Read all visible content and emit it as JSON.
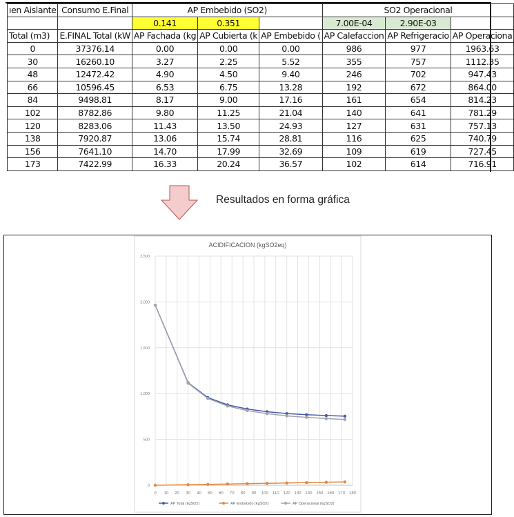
{
  "table": {
    "group_headers": [
      "ıen Aislante",
      "Consumo E.Final",
      "AP Embebido (SO2)",
      "SO2 Operacional"
    ],
    "factors": {
      "fachada": "0.141",
      "cubierta": "0.351",
      "calefaccion": "7.00E-04",
      "refrigeracion": "2.90E-03"
    },
    "columns": [
      "Total (m3)",
      "E.FINAL Total (kW",
      "AP Fachada (kg",
      "AP Cubierta (k",
      "AP Embebido (",
      "AP Calefaccion",
      "AP Refrigeracio",
      "AP Operaciona"
    ],
    "rows": [
      [
        "0",
        "37376.14",
        "0.00",
        "0.00",
        "0.00",
        "986",
        "977",
        "1963.63"
      ],
      [
        "30",
        "16260.10",
        "3.27",
        "2.25",
        "5.52",
        "355",
        "757",
        "1112.35"
      ],
      [
        "48",
        "12472.42",
        "4.90",
        "4.50",
        "9.40",
        "246",
        "702",
        "947.43"
      ],
      [
        "66",
        "10596.45",
        "6.53",
        "6.75",
        "13.28",
        "192",
        "672",
        "864.00"
      ],
      [
        "84",
        "9498.81",
        "8.17",
        "9.00",
        "17.16",
        "161",
        "654",
        "814.23"
      ],
      [
        "102",
        "8782.86",
        "9.80",
        "11.25",
        "21.04",
        "140",
        "641",
        "781.29"
      ],
      [
        "120",
        "8283.06",
        "11.43",
        "13.50",
        "24.93",
        "127",
        "631",
        "757.13"
      ],
      [
        "138",
        "7920.87",
        "13.06",
        "15.74",
        "28.81",
        "116",
        "625",
        "740.79"
      ],
      [
        "156",
        "7641.10",
        "14.70",
        "17.99",
        "32.69",
        "109",
        "619",
        "727.45"
      ],
      [
        "173",
        "7422.99",
        "16.33",
        "20.24",
        "36.57",
        "102",
        "614",
        "716.91"
      ]
    ]
  },
  "caption": "Resultados en forma gráfica",
  "chart_data": {
    "type": "line",
    "title": "ACIDIFICACION (kgSO2eq)",
    "x": [
      0,
      30,
      48,
      66,
      84,
      102,
      120,
      138,
      156,
      173
    ],
    "xlim": [
      0,
      180
    ],
    "x_ticks": [
      "0",
      "10",
      "20",
      "30",
      "40",
      "50",
      "60",
      "70",
      "80",
      "90",
      "100",
      "110",
      "120",
      "130",
      "140",
      "150",
      "160",
      "170",
      "180"
    ],
    "ylim": [
      0,
      2500
    ],
    "y_ticks": [
      "0",
      "500",
      "1,000",
      "1,500",
      "2,000",
      "2,500"
    ],
    "grid": true,
    "legend": "bottom",
    "series": [
      {
        "name": "AP Total (kgSO2)",
        "color": "#4a5aa8",
        "values": [
          1963.63,
          1117.87,
          956.83,
          877.28,
          831.39,
          802.33,
          782.06,
          769.6,
          760.14,
          753.48
        ]
      },
      {
        "name": "AP Embebido (kgSO2)",
        "color": "#e8873a",
        "values": [
          0,
          5.52,
          9.4,
          13.28,
          17.16,
          21.04,
          24.93,
          28.81,
          32.69,
          36.57
        ]
      },
      {
        "name": "AP Operacional (kgSO2)",
        "color": "#a0a4ad",
        "values": [
          1963.63,
          1112.35,
          947.43,
          864.0,
          814.23,
          781.29,
          757.13,
          740.79,
          727.45,
          716.91
        ]
      }
    ]
  }
}
